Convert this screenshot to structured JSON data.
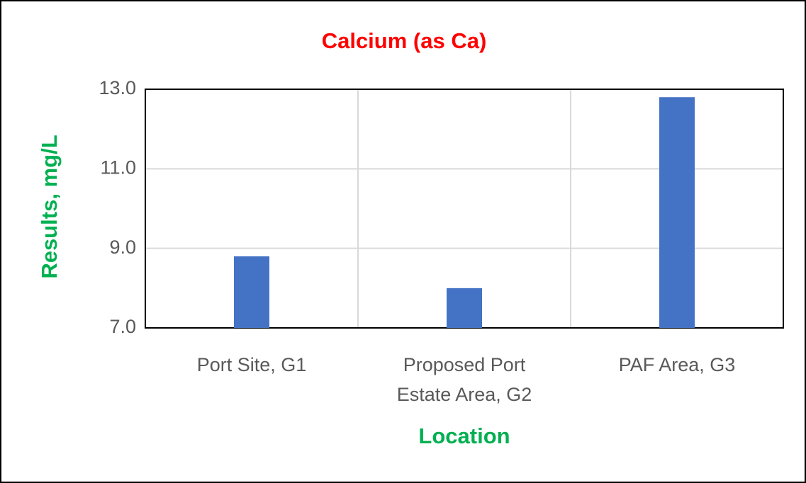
{
  "chart_data": {
    "type": "bar",
    "title": "Calcium (as Ca)",
    "x_label": "Location",
    "y_label": "Results, mg/L",
    "categories": [
      "Port Site, G1",
      "Proposed Port Estate Area, G2",
      "PAF Area, G3"
    ],
    "values": [
      8.8,
      8.0,
      12.8
    ],
    "color": "#4472c4",
    "ylim": [
      7,
      13
    ],
    "yticks": [
      {
        "value": 7,
        "label": "7.0"
      },
      {
        "value": 9,
        "label": "9.0"
      },
      {
        "value": 11,
        "label": "11.0"
      },
      {
        "value": 13,
        "label": "13.0"
      }
    ],
    "grid": true
  }
}
